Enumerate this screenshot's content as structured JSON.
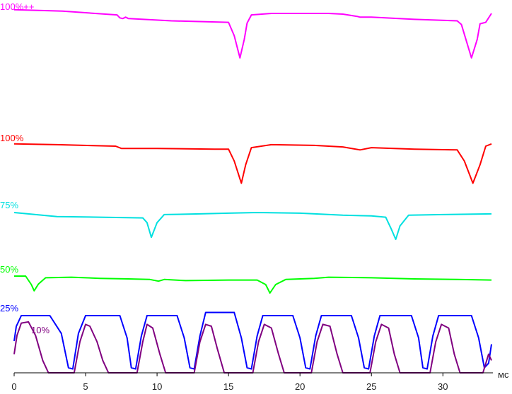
{
  "chart_data": {
    "type": "line",
    "xlabel": "мс",
    "xlim": [
      0,
      33.5
    ],
    "xticks": [
      0,
      5,
      10,
      15,
      20,
      25,
      30
    ],
    "grid": false,
    "series": [
      {
        "name": "100%++",
        "color": "#ff00ff",
        "points": [
          [
            0,
            10.5
          ],
          [
            3.4,
            10.3
          ],
          [
            7.2,
            9.8
          ],
          [
            7.4,
            9.4
          ],
          [
            7.6,
            9.3
          ],
          [
            7.8,
            9.5
          ],
          [
            8,
            9.3
          ],
          [
            11,
            9.0
          ],
          [
            15,
            8.8
          ],
          [
            15.4,
            7.0
          ],
          [
            15.8,
            4.0
          ],
          [
            16.1,
            6.5
          ],
          [
            16.3,
            8.7
          ],
          [
            16.6,
            9.8
          ],
          [
            18,
            10.0
          ],
          [
            22,
            10.0
          ],
          [
            23,
            9.9
          ],
          [
            24,
            9.6
          ],
          [
            24.2,
            9.5
          ],
          [
            25,
            9.5
          ],
          [
            28,
            9.2
          ],
          [
            31,
            9.0
          ],
          [
            31.3,
            8.5
          ],
          [
            32,
            4.0
          ],
          [
            32.4,
            6.5
          ],
          [
            32.6,
            8.6
          ],
          [
            33,
            8.8
          ],
          [
            33.4,
            10.0
          ]
        ]
      },
      {
        "name": "100%",
        "color": "#ff0000",
        "points": [
          [
            0,
            10.3
          ],
          [
            3,
            10.2
          ],
          [
            7.1,
            10.0
          ],
          [
            7.5,
            9.7
          ],
          [
            10,
            9.7
          ],
          [
            14,
            9.6
          ],
          [
            15,
            9.6
          ],
          [
            15.4,
            8.0
          ],
          [
            15.9,
            5.0
          ],
          [
            16.2,
            7.5
          ],
          [
            16.6,
            9.8
          ],
          [
            18,
            10.2
          ],
          [
            21,
            10.1
          ],
          [
            23,
            9.9
          ],
          [
            24.2,
            9.5
          ],
          [
            25,
            9.8
          ],
          [
            28,
            9.6
          ],
          [
            31,
            9.5
          ],
          [
            31.5,
            8.0
          ],
          [
            32.1,
            5.0
          ],
          [
            32.6,
            7.5
          ],
          [
            33,
            10.0
          ],
          [
            33.4,
            10.3
          ]
        ]
      },
      {
        "name": "75%",
        "color": "#00e0e0",
        "points": [
          [
            0,
            10.0
          ],
          [
            3,
            9.4
          ],
          [
            6,
            9.3
          ],
          [
            9,
            9.2
          ],
          [
            9.3,
            8.5
          ],
          [
            9.6,
            6.3
          ],
          [
            10,
            8.5
          ],
          [
            10.5,
            9.7
          ],
          [
            13,
            9.8
          ],
          [
            15,
            9.9
          ],
          [
            17,
            10.0
          ],
          [
            20,
            9.9
          ],
          [
            23,
            9.6
          ],
          [
            25,
            9.5
          ],
          [
            26,
            9.3
          ],
          [
            26.4,
            7.5
          ],
          [
            26.7,
            6.0
          ],
          [
            27,
            8.0
          ],
          [
            27.6,
            9.6
          ],
          [
            30,
            9.7
          ],
          [
            33.4,
            9.8
          ]
        ]
      },
      {
        "name": "50%",
        "color": "#00ff00",
        "points": [
          [
            0,
            10.0
          ],
          [
            0.8,
            10.0
          ],
          [
            1.2,
            8.5
          ],
          [
            1.4,
            7.4
          ],
          [
            1.7,
            8.6
          ],
          [
            2.2,
            9.7
          ],
          [
            4,
            9.8
          ],
          [
            6,
            9.6
          ],
          [
            8,
            9.5
          ],
          [
            9.5,
            9.4
          ],
          [
            10.1,
            9.1
          ],
          [
            10.5,
            9.4
          ],
          [
            12,
            9.2
          ],
          [
            15,
            9.3
          ],
          [
            17,
            9.3
          ],
          [
            17.6,
            8.5
          ],
          [
            17.9,
            7.0
          ],
          [
            18.3,
            8.5
          ],
          [
            19,
            9.4
          ],
          [
            21,
            9.6
          ],
          [
            22,
            9.8
          ],
          [
            25,
            9.7
          ],
          [
            28,
            9.5
          ],
          [
            31,
            9.4
          ],
          [
            33.4,
            9.3
          ]
        ]
      },
      {
        "name": "25%",
        "color": "#0000ff",
        "points": [
          [
            0,
            5.0
          ],
          [
            0.15,
            7.3
          ],
          [
            0.5,
            9.0
          ],
          [
            2.5,
            9.0
          ],
          [
            3.3,
            6.2
          ],
          [
            3.8,
            0.8
          ],
          [
            4.1,
            0.6
          ],
          [
            4.5,
            6.2
          ],
          [
            5.0,
            9.0
          ],
          [
            7.4,
            9.0
          ],
          [
            7.9,
            5.5
          ],
          [
            8.2,
            0.8
          ],
          [
            8.5,
            0.6
          ],
          [
            8.9,
            5.8
          ],
          [
            9.3,
            9.0
          ],
          [
            11.4,
            9.0
          ],
          [
            11.9,
            5.5
          ],
          [
            12.3,
            0.8
          ],
          [
            12.6,
            0.6
          ],
          [
            13.0,
            5.8
          ],
          [
            13.4,
            9.5
          ],
          [
            15.4,
            9.5
          ],
          [
            15.9,
            5.5
          ],
          [
            16.3,
            0.8
          ],
          [
            16.6,
            0.6
          ],
          [
            17.0,
            5.8
          ],
          [
            17.4,
            9.0
          ],
          [
            19.5,
            9.0
          ],
          [
            20.0,
            5.5
          ],
          [
            20.4,
            0.8
          ],
          [
            20.7,
            0.6
          ],
          [
            21.1,
            5.8
          ],
          [
            21.5,
            9.0
          ],
          [
            23.6,
            9.0
          ],
          [
            24.1,
            5.5
          ],
          [
            24.5,
            0.8
          ],
          [
            24.8,
            0.6
          ],
          [
            25.2,
            5.8
          ],
          [
            25.6,
            9.0
          ],
          [
            27.8,
            9.0
          ],
          [
            28.3,
            5.5
          ],
          [
            28.6,
            0.8
          ],
          [
            28.9,
            0.6
          ],
          [
            29.3,
            5.8
          ],
          [
            29.7,
            9.0
          ],
          [
            32.0,
            9.0
          ],
          [
            32.5,
            5.5
          ],
          [
            32.9,
            0.8
          ],
          [
            33.2,
            1.5
          ],
          [
            33.4,
            4.5
          ]
        ]
      },
      {
        "name": "10%",
        "color": "#800080",
        "points": [
          [
            0,
            3.0
          ],
          [
            0.2,
            6.0
          ],
          [
            0.5,
            8.0
          ],
          [
            1.0,
            8.2
          ],
          [
            1.5,
            6.0
          ],
          [
            2.0,
            2.0
          ],
          [
            2.4,
            0
          ],
          [
            4.2,
            0
          ],
          [
            4.6,
            5.0
          ],
          [
            5.0,
            7.8
          ],
          [
            5.3,
            7.5
          ],
          [
            5.8,
            5.0
          ],
          [
            6.2,
            2.0
          ],
          [
            6.6,
            0
          ],
          [
            8.6,
            0
          ],
          [
            9.0,
            5.0
          ],
          [
            9.3,
            7.8
          ],
          [
            9.7,
            7.2
          ],
          [
            10.2,
            3.0
          ],
          [
            10.6,
            0
          ],
          [
            12.6,
            0
          ],
          [
            13.0,
            5.0
          ],
          [
            13.4,
            7.8
          ],
          [
            13.8,
            7.5
          ],
          [
            14.2,
            4.0
          ],
          [
            14.7,
            0
          ],
          [
            16.7,
            0
          ],
          [
            17.1,
            5.0
          ],
          [
            17.5,
            7.8
          ],
          [
            18.0,
            7.2
          ],
          [
            18.5,
            3.0
          ],
          [
            18.9,
            0
          ],
          [
            20.8,
            0
          ],
          [
            21.2,
            5.0
          ],
          [
            21.6,
            7.8
          ],
          [
            22.1,
            7.5
          ],
          [
            22.6,
            3.0
          ],
          [
            23.0,
            0
          ],
          [
            24.9,
            0
          ],
          [
            25.3,
            5.0
          ],
          [
            25.7,
            7.8
          ],
          [
            26.2,
            7.2
          ],
          [
            26.6,
            3.0
          ],
          [
            27.0,
            0
          ],
          [
            29.1,
            0
          ],
          [
            29.5,
            5.0
          ],
          [
            29.9,
            7.8
          ],
          [
            30.4,
            7.2
          ],
          [
            30.8,
            3.0
          ],
          [
            31.2,
            0
          ],
          [
            32.8,
            0
          ],
          [
            33.0,
            1.5
          ],
          [
            33.2,
            3.0
          ],
          [
            33.4,
            2.0
          ]
        ]
      }
    ]
  }
}
